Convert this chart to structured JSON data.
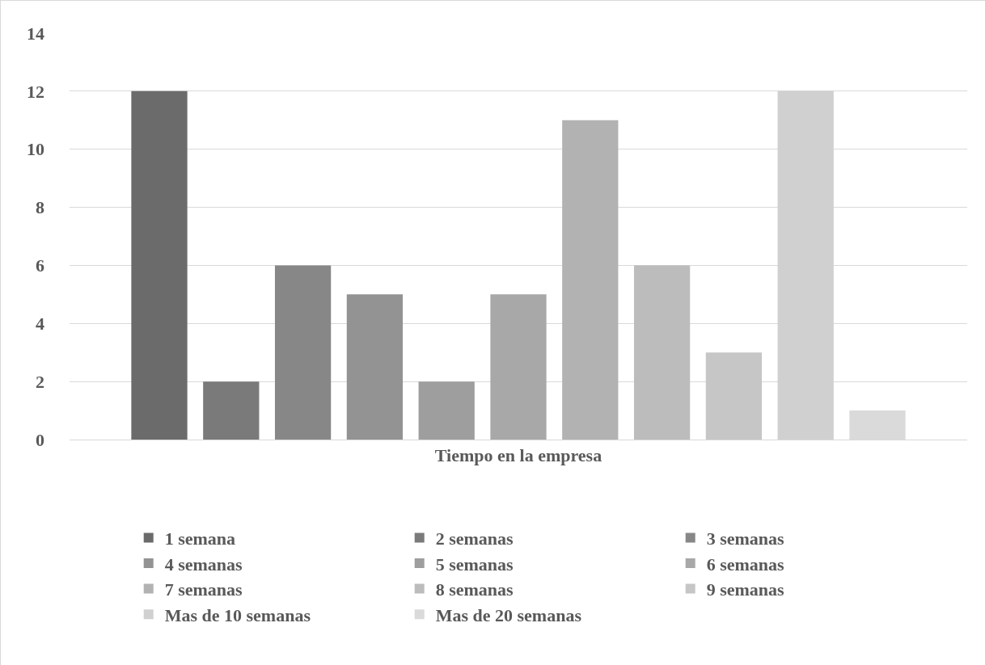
{
  "chart_data": {
    "type": "bar",
    "categories": [
      "Tiempo en la empresa"
    ],
    "series": [
      {
        "name": "1 semana",
        "color": "#6b6b6b",
        "values": [
          12
        ]
      },
      {
        "name": "2 semanas",
        "color": "#7a7a7a",
        "values": [
          2
        ]
      },
      {
        "name": "3 semanas",
        "color": "#878787",
        "values": [
          6
        ]
      },
      {
        "name": "4 semanas",
        "color": "#939393",
        "values": [
          5
        ]
      },
      {
        "name": "5 semanas",
        "color": "#9e9e9e",
        "values": [
          2
        ]
      },
      {
        "name": "6 semanas",
        "color": "#a8a8a8",
        "values": [
          5
        ]
      },
      {
        "name": "7 semanas",
        "color": "#b2b2b2",
        "values": [
          11
        ]
      },
      {
        "name": "8 semanas",
        "color": "#bcbcbc",
        "values": [
          6
        ]
      },
      {
        "name": "9 semanas",
        "color": "#c6c6c6",
        "values": [
          3
        ]
      },
      {
        "name": "Mas de 10 semanas",
        "color": "#d0d0d0",
        "values": [
          12
        ]
      },
      {
        "name": "Mas de 20 semanas",
        "color": "#dadada",
        "values": [
          1
        ]
      }
    ],
    "ylim": [
      0,
      14
    ],
    "yticks": [
      0,
      2,
      4,
      6,
      8,
      10,
      12,
      14
    ],
    "grid": "y",
    "legend": "bottom"
  }
}
